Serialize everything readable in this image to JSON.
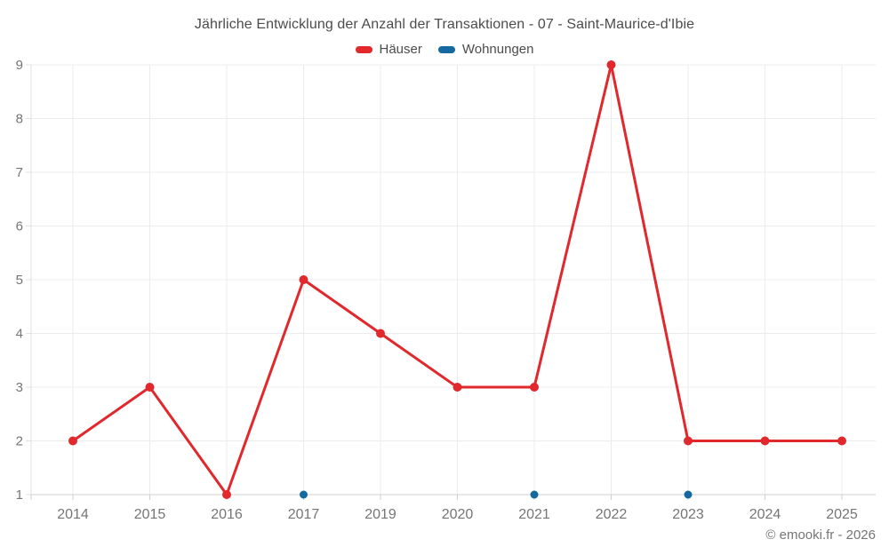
{
  "header": {
    "title": "Jährliche Entwicklung der Anzahl der Transaktionen - 07 - Saint-Maurice-d'Ibie"
  },
  "legend": {
    "items": [
      {
        "label": "Häuser",
        "color": "#e0282d"
      },
      {
        "label": "Wohnungen",
        "color": "#16699e"
      }
    ]
  },
  "footer": {
    "copyright": "© emooki.fr - 2026"
  },
  "chart_data": {
    "type": "line",
    "title": "Jährliche Entwicklung der Anzahl der Transaktionen - 07 - Saint-Maurice-d'Ibie",
    "categories": [
      "2014",
      "2015",
      "2016",
      "2017",
      "2019",
      "2020",
      "2021",
      "2022",
      "2023",
      "2024",
      "2025"
    ],
    "series": [
      {
        "name": "Häuser",
        "color": "#e0282d",
        "line": true,
        "marker": "circle",
        "values": [
          2,
          3,
          1,
          5,
          4,
          3,
          3,
          9,
          2,
          2,
          2
        ]
      },
      {
        "name": "Wohnungen",
        "color": "#16699e",
        "line": false,
        "marker": "circle",
        "values": [
          null,
          null,
          null,
          1,
          null,
          null,
          1,
          null,
          1,
          null,
          null
        ]
      }
    ],
    "xlabel": "",
    "ylabel": "",
    "ylim": [
      1,
      9
    ],
    "yticks": [
      1,
      2,
      3,
      4,
      5,
      6,
      7,
      8,
      9
    ],
    "grid": true,
    "legend_position": "top"
  }
}
